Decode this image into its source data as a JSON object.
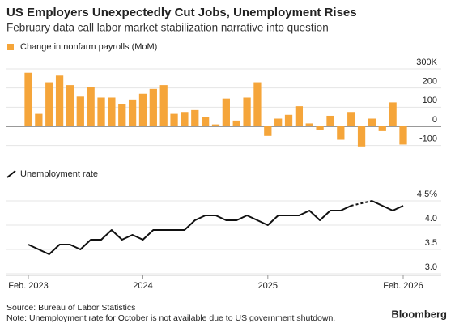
{
  "title": "US Employers Unexpectedly Cut Jobs, Unemployment Rises",
  "subtitle": "February data call labor market stabilization narrative into question",
  "source": "Source: Bureau of Labor Statistics",
  "note": "Note: Unemployment rate for October is not available due to US government shutdown.",
  "logo": "Bloomberg",
  "chart_data": [
    {
      "type": "bar",
      "categories": [
        "Feb. 2023",
        null,
        null,
        null,
        null,
        null,
        null,
        null,
        null,
        null,
        null,
        "2024",
        null,
        null,
        null,
        null,
        null,
        null,
        null,
        null,
        null,
        null,
        null,
        "2025",
        null,
        null,
        null,
        null,
        null,
        null,
        null,
        null,
        null,
        null,
        null,
        null,
        "Feb. 2026"
      ],
      "series": [
        {
          "name": "Change in nonfarm payrolls (MoM)",
          "color": "#f5a53a",
          "values": [
            280,
            65,
            230,
            265,
            215,
            155,
            205,
            150,
            150,
            115,
            140,
            170,
            195,
            215,
            65,
            75,
            85,
            50,
            10,
            145,
            30,
            150,
            230,
            -50,
            40,
            60,
            105,
            15,
            -20,
            55,
            -70,
            75,
            -105,
            40,
            -25,
            125,
            -95
          ]
        }
      ],
      "ylim": [
        -110,
        300
      ],
      "yticks": [
        -100,
        0,
        100,
        200,
        {
          "value": 300,
          "label": "300K"
        }
      ],
      "grid": true
    },
    {
      "type": "line",
      "categories": [
        "Feb. 2023",
        null,
        null,
        null,
        null,
        null,
        null,
        null,
        null,
        null,
        null,
        "2024",
        null,
        null,
        null,
        null,
        null,
        null,
        null,
        null,
        null,
        null,
        null,
        "2025",
        null,
        null,
        null,
        null,
        null,
        null,
        null,
        null,
        null,
        null,
        null,
        null,
        "Feb. 2026"
      ],
      "series": [
        {
          "name": "Unemployment rate",
          "color": "#111111",
          "values": [
            3.6,
            3.5,
            3.4,
            3.6,
            3.6,
            3.5,
            3.7,
            3.7,
            3.9,
            3.7,
            3.8,
            3.7,
            3.9,
            3.9,
            3.9,
            3.9,
            4.1,
            4.2,
            4.2,
            4.1,
            4.1,
            4.2,
            4.1,
            4.0,
            4.2,
            4.2,
            4.2,
            4.3,
            4.1,
            4.3,
            4.3,
            4.4,
            null,
            4.5,
            4.4,
            4.3,
            4.4
          ]
        }
      ],
      "ylim": [
        3.0,
        4.6
      ],
      "yticks": [
        {
          "value": 3.0,
          "label": "3.0"
        },
        3.5,
        {
          "value": 4.0,
          "label": "4.0"
        },
        {
          "value": 4.5,
          "label": "4.5%"
        }
      ],
      "grid": true
    }
  ]
}
